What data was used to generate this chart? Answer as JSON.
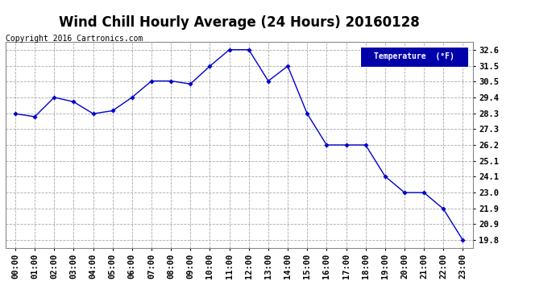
{
  "title": "Wind Chill Hourly Average (24 Hours) 20160128",
  "copyright": "Copyright 2016 Cartronics.com",
  "legend_label": "Temperature  (°F)",
  "x_labels": [
    "00:00",
    "01:00",
    "02:00",
    "03:00",
    "04:00",
    "05:00",
    "06:00",
    "07:00",
    "08:00",
    "09:00",
    "10:00",
    "11:00",
    "12:00",
    "13:00",
    "14:00",
    "15:00",
    "16:00",
    "17:00",
    "18:00",
    "19:00",
    "20:00",
    "21:00",
    "22:00",
    "23:00"
  ],
  "y_values": [
    28.3,
    28.1,
    29.4,
    29.1,
    28.3,
    28.5,
    29.4,
    30.5,
    30.5,
    30.3,
    31.5,
    32.6,
    32.6,
    30.5,
    31.5,
    28.3,
    26.2,
    26.2,
    26.2,
    24.1,
    23.0,
    23.0,
    21.9,
    19.8
  ],
  "ylim_min": 19.3,
  "ylim_max": 33.1,
  "yticks": [
    19.8,
    20.9,
    21.9,
    23.0,
    24.1,
    25.1,
    26.2,
    27.3,
    28.3,
    29.4,
    30.5,
    31.5,
    32.6
  ],
  "line_color": "#0000cc",
  "marker_color": "#0000cc",
  "bg_color": "#ffffff",
  "plot_bg_color": "#ffffff",
  "grid_color": "#aaaaaa",
  "title_fontsize": 12,
  "copyright_fontsize": 7,
  "legend_bg": "#0000aa",
  "legend_text_color": "#ffffff",
  "tick_label_fontsize": 7.5
}
